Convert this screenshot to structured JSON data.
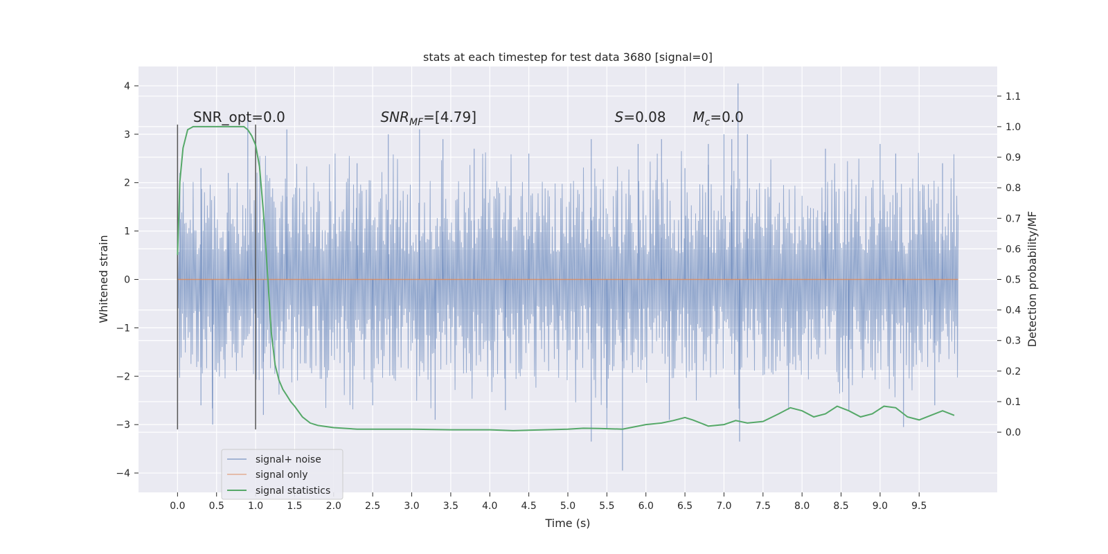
{
  "chart_data": {
    "type": "line",
    "title": "stats at each timestep for test data 3680 [signal=0]",
    "xlabel": "Time (s)",
    "ylabel": "Whitened strain",
    "y2label": "Detection probability/MF",
    "xlim": [
      -0.5,
      10.5
    ],
    "ylim": [
      -4.4,
      4.4
    ],
    "y2lim": [
      -0.197,
      1.197
    ],
    "x_ticks": [
      "0.0",
      "0.5",
      "1.0",
      "1.5",
      "2.0",
      "2.5",
      "3.0",
      "3.5",
      "4.0",
      "4.5",
      "5.0",
      "5.5",
      "6.0",
      "6.5",
      "7.0",
      "7.5",
      "8.0",
      "8.5",
      "9.0",
      "9.5"
    ],
    "y_ticks": [
      "4",
      "3",
      "2",
      "1",
      "0",
      "−1",
      "−2",
      "−3",
      "−4"
    ],
    "y2_ticks": [
      "1.1",
      "1.0",
      "0.9",
      "0.8",
      "0.7",
      "0.6",
      "0.5",
      "0.4",
      "0.3",
      "0.2",
      "0.1",
      "0.0"
    ],
    "grid": true,
    "legend_position": "lower-left",
    "colors": {
      "background": "#eaeaf2",
      "noise": "#4c72b0",
      "signal": "#dd8452",
      "stats": "#55a868",
      "vline": "#555555"
    },
    "series": [
      {
        "name": "signal+ noise",
        "color": "#4c72b0",
        "x_range": [
          0.0,
          10.0
        ],
        "envelope": {
          "typical_band": [
            -1.3,
            1.3
          ],
          "upper_spikes": [
            [
              0.03,
              2.2
            ],
            [
              0.3,
              2.3
            ],
            [
              0.65,
              2.2
            ],
            [
              0.9,
              3.4
            ],
            [
              1.4,
              3.1
            ],
            [
              2.3,
              2.4
            ],
            [
              2.7,
              3.0
            ],
            [
              3.1,
              3.1
            ],
            [
              3.4,
              2.9
            ],
            [
              3.8,
              2.7
            ],
            [
              4.5,
              2.6
            ],
            [
              5.3,
              2.9
            ],
            [
              5.9,
              2.8
            ],
            [
              6.2,
              2.9
            ],
            [
              6.5,
              2.3
            ],
            [
              6.8,
              2.8
            ],
            [
              7.0,
              3.0
            ],
            [
              7.1,
              2.9
            ],
            [
              7.18,
              4.05
            ],
            [
              7.3,
              3.0
            ],
            [
              8.3,
              2.7
            ],
            [
              9.0,
              2.8
            ],
            [
              9.2,
              2.6
            ],
            [
              9.8,
              2.4
            ]
          ],
          "lower_spikes": [
            [
              0.3,
              -2.6
            ],
            [
              0.45,
              -3.0
            ],
            [
              1.1,
              -2.8
            ],
            [
              2.5,
              -2.6
            ],
            [
              3.3,
              -2.9
            ],
            [
              4.2,
              -2.7
            ],
            [
              5.3,
              -3.35
            ],
            [
              5.5,
              -3.1
            ],
            [
              5.7,
              -3.95
            ],
            [
              6.3,
              -2.9
            ],
            [
              7.2,
              -3.35
            ],
            [
              8.6,
              -2.7
            ],
            [
              9.3,
              -3.05
            ],
            [
              9.7,
              -2.6
            ]
          ]
        }
      },
      {
        "name": "signal only",
        "color": "#dd8452",
        "x": [
          0.0,
          10.0
        ],
        "y": [
          0.0,
          0.0
        ]
      },
      {
        "name": "signal statistics",
        "color": "#55a868",
        "axis": "right",
        "x": [
          0.0,
          0.03,
          0.07,
          0.13,
          0.2,
          0.3,
          0.4,
          0.5,
          0.6,
          0.7,
          0.8,
          0.85,
          0.9,
          0.95,
          1.0,
          1.05,
          1.1,
          1.15,
          1.2,
          1.25,
          1.3,
          1.35,
          1.4,
          1.45,
          1.5,
          1.6,
          1.7,
          1.8,
          2.0,
          2.3,
          2.6,
          3.0,
          3.5,
          4.0,
          4.3,
          4.7,
          5.0,
          5.2,
          5.4,
          5.7,
          6.0,
          6.2,
          6.35,
          6.5,
          6.6,
          6.8,
          7.0,
          7.15,
          7.3,
          7.5,
          7.7,
          7.85,
          8.0,
          8.15,
          8.3,
          8.45,
          8.6,
          8.75,
          8.9,
          9.05,
          9.2,
          9.35,
          9.5,
          9.65,
          9.8,
          9.95
        ],
        "y": [
          0.58,
          0.82,
          0.93,
          0.99,
          1.0,
          1.0,
          1.0,
          1.0,
          1.0,
          1.0,
          1.0,
          1.0,
          0.99,
          0.97,
          0.94,
          0.87,
          0.72,
          0.53,
          0.33,
          0.22,
          0.17,
          0.14,
          0.12,
          0.1,
          0.085,
          0.05,
          0.03,
          0.022,
          0.015,
          0.01,
          0.01,
          0.01,
          0.008,
          0.008,
          0.005,
          0.008,
          0.01,
          0.013,
          0.012,
          0.01,
          0.025,
          0.03,
          0.038,
          0.048,
          0.04,
          0.02,
          0.025,
          0.038,
          0.03,
          0.035,
          0.06,
          0.08,
          0.07,
          0.05,
          0.06,
          0.085,
          0.07,
          0.05,
          0.06,
          0.085,
          0.08,
          0.05,
          0.04,
          0.055,
          0.07,
          0.055
        ]
      }
    ],
    "annotations": [
      {
        "text": "SNR_opt=0.0",
        "x": 0.2,
        "y": 3.2
      },
      {
        "base": "SNR",
        "sub": "MF",
        "rest": "=[4.79]",
        "x": 2.6,
        "y": 3.2
      },
      {
        "base": "S",
        "sub": "",
        "rest": "=0.08",
        "x": 5.6,
        "y": 3.2
      },
      {
        "base": "M",
        "sub": "c",
        "rest": "=0.0",
        "x": 6.6,
        "y": 3.2
      }
    ],
    "vlines": [
      {
        "x": 0.0,
        "ymin": -3.1,
        "ymax": 3.2
      },
      {
        "x": 1.0,
        "ymin": -3.1,
        "ymax": 3.2
      }
    ]
  }
}
